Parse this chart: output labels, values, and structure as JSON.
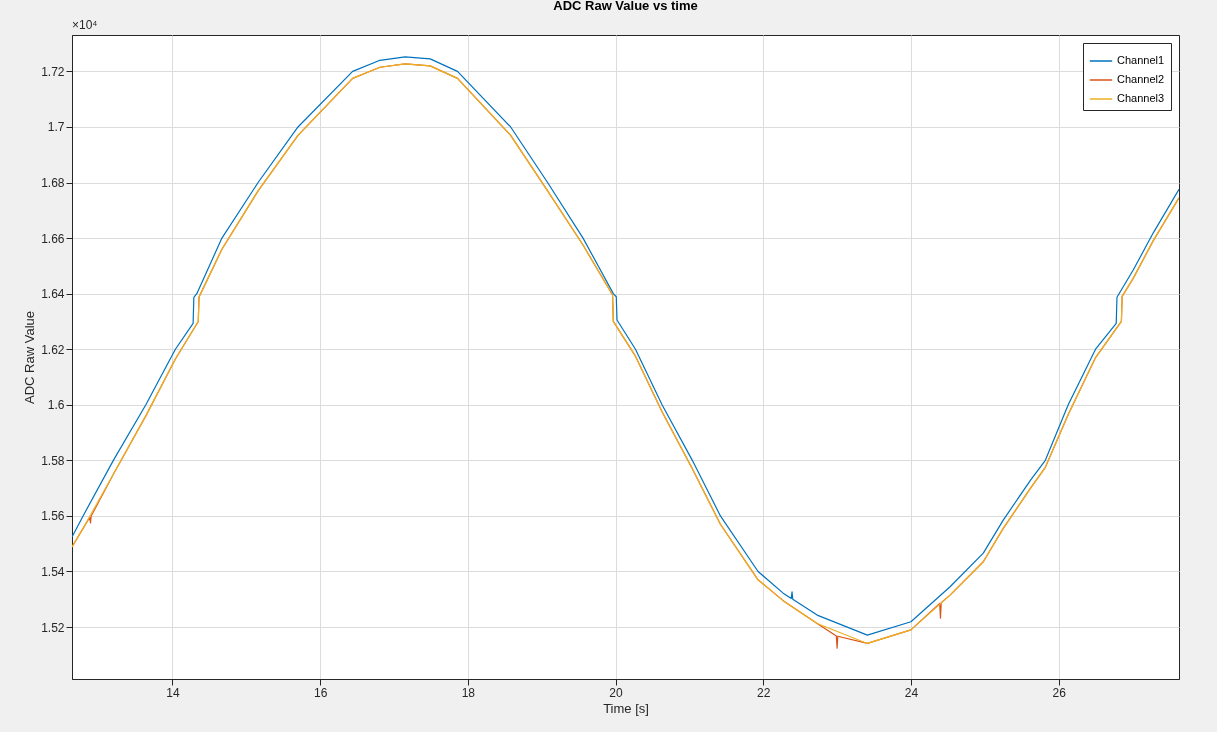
{
  "chart_data": {
    "type": "line",
    "title": "ADC Raw Value vs time",
    "xlabel": "Time [s]",
    "ylabel": "ADC Raw Value",
    "annotations": [
      "×10⁴"
    ],
    "xlim": [
      12.64,
      27.63
    ],
    "xticks": [
      14,
      16,
      18,
      20,
      22,
      24,
      26
    ],
    "ylim": [
      1.5013,
      1.7331
    ],
    "yticks": [
      1.52,
      1.54,
      1.56,
      1.58,
      1.6,
      1.62,
      1.64,
      1.66,
      1.68,
      1.7,
      1.72
    ],
    "grid": true,
    "legend": "top right",
    "marker": "none",
    "line_style": "solid",
    "series": [
      {
        "name": "Channel1",
        "color": "#0072bd",
        "x": [
          12.64,
          12.79,
          13.2,
          13.64,
          14.04,
          14.28,
          14.29,
          14.33,
          14.67,
          15.16,
          15.7,
          16.44,
          16.81,
          17.15,
          17.49,
          17.86,
          18.58,
          19.08,
          19.56,
          19.97,
          20.01,
          20.02,
          20.27,
          20.63,
          21.04,
          21.42,
          21.93,
          22.27,
          22.38,
          22.39,
          22.4,
          22.73,
          23.41,
          24.0,
          24.53,
          24.98,
          25.25,
          25.62,
          25.82,
          26.13,
          26.5,
          26.78,
          26.79,
          27.01,
          27.28,
          27.63
        ],
        "values": [
          1.5524,
          1.56,
          1.58,
          1.6,
          1.62,
          1.6293,
          1.6387,
          1.64,
          1.66,
          1.68,
          1.7,
          1.72,
          1.724,
          1.7252,
          1.7245,
          1.72,
          1.7,
          1.68,
          1.66,
          1.64,
          1.6389,
          1.6305,
          1.62,
          1.6,
          1.58,
          1.56,
          1.54,
          1.5322,
          1.5303,
          1.5327,
          1.53,
          1.5243,
          1.5171,
          1.5219,
          1.5345,
          1.5466,
          1.5585,
          1.5729,
          1.58,
          1.6,
          1.62,
          1.6293,
          1.6387,
          1.6485,
          1.6618,
          1.6776
        ]
      },
      {
        "name": "Channel2",
        "color": "#d95319",
        "x": [
          12.64,
          12.79,
          12.88,
          12.89,
          12.9,
          13.2,
          13.64,
          14.04,
          14.35,
          14.36,
          14.4,
          14.67,
          15.16,
          15.7,
          16.44,
          16.81,
          17.15,
          17.49,
          17.86,
          18.58,
          19.08,
          19.56,
          19.96,
          19.97,
          20.27,
          20.63,
          21.04,
          21.42,
          21.93,
          22.27,
          22.73,
          22.99,
          23.0,
          23.01,
          23.41,
          24.0,
          24.39,
          24.4,
          24.41,
          24.53,
          24.98,
          25.25,
          25.62,
          25.82,
          26.13,
          26.5,
          26.85,
          26.86,
          27.01,
          27.28,
          27.63
        ],
        "values": [
          1.5488,
          1.5555,
          1.5595,
          1.5575,
          1.56,
          1.575,
          1.596,
          1.6165,
          1.63,
          1.6388,
          1.641,
          1.656,
          1.677,
          1.697,
          1.7175,
          1.7215,
          1.7227,
          1.722,
          1.7175,
          1.697,
          1.677,
          1.6575,
          1.6395,
          1.63,
          1.6175,
          1.5975,
          1.577,
          1.557,
          1.537,
          1.5295,
          1.5213,
          1.5168,
          1.5124,
          1.5167,
          1.5141,
          1.519,
          1.5285,
          1.5232,
          1.5288,
          1.5315,
          1.5435,
          1.5555,
          1.57,
          1.5775,
          1.5965,
          1.617,
          1.63,
          1.639,
          1.6455,
          1.659,
          1.6745
        ]
      },
      {
        "name": "Channel3",
        "color": "#edb120",
        "x": [
          12.64,
          12.79,
          13.2,
          13.64,
          14.04,
          14.35,
          14.36,
          14.4,
          14.67,
          15.16,
          15.7,
          16.44,
          16.81,
          17.15,
          17.49,
          17.86,
          18.58,
          19.08,
          19.56,
          19.96,
          19.97,
          20.27,
          20.63,
          21.04,
          21.42,
          21.93,
          22.27,
          22.73,
          23.41,
          24.0,
          24.53,
          24.98,
          25.25,
          25.62,
          25.82,
          26.13,
          26.5,
          26.85,
          26.86,
          27.01,
          27.28,
          27.63
        ],
        "values": [
          1.5488,
          1.5555,
          1.575,
          1.596,
          1.6165,
          1.63,
          1.6388,
          1.641,
          1.656,
          1.677,
          1.697,
          1.7175,
          1.7215,
          1.7227,
          1.722,
          1.7175,
          1.697,
          1.677,
          1.6575,
          1.6395,
          1.63,
          1.6175,
          1.5975,
          1.577,
          1.557,
          1.537,
          1.5295,
          1.5213,
          1.5141,
          1.519,
          1.5315,
          1.5435,
          1.5555,
          1.57,
          1.5775,
          1.5965,
          1.617,
          1.63,
          1.639,
          1.6455,
          1.659,
          1.6745
        ]
      }
    ]
  }
}
